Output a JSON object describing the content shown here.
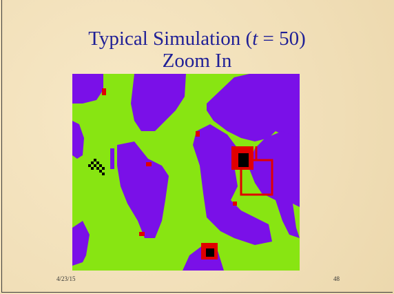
{
  "slide": {
    "title_line1": {
      "before": "Typical Simulation (",
      "italic": "t",
      "after": " = 50)"
    },
    "title_line2": "Zoom In",
    "date": "4/23/15",
    "page_number": "48"
  }
}
